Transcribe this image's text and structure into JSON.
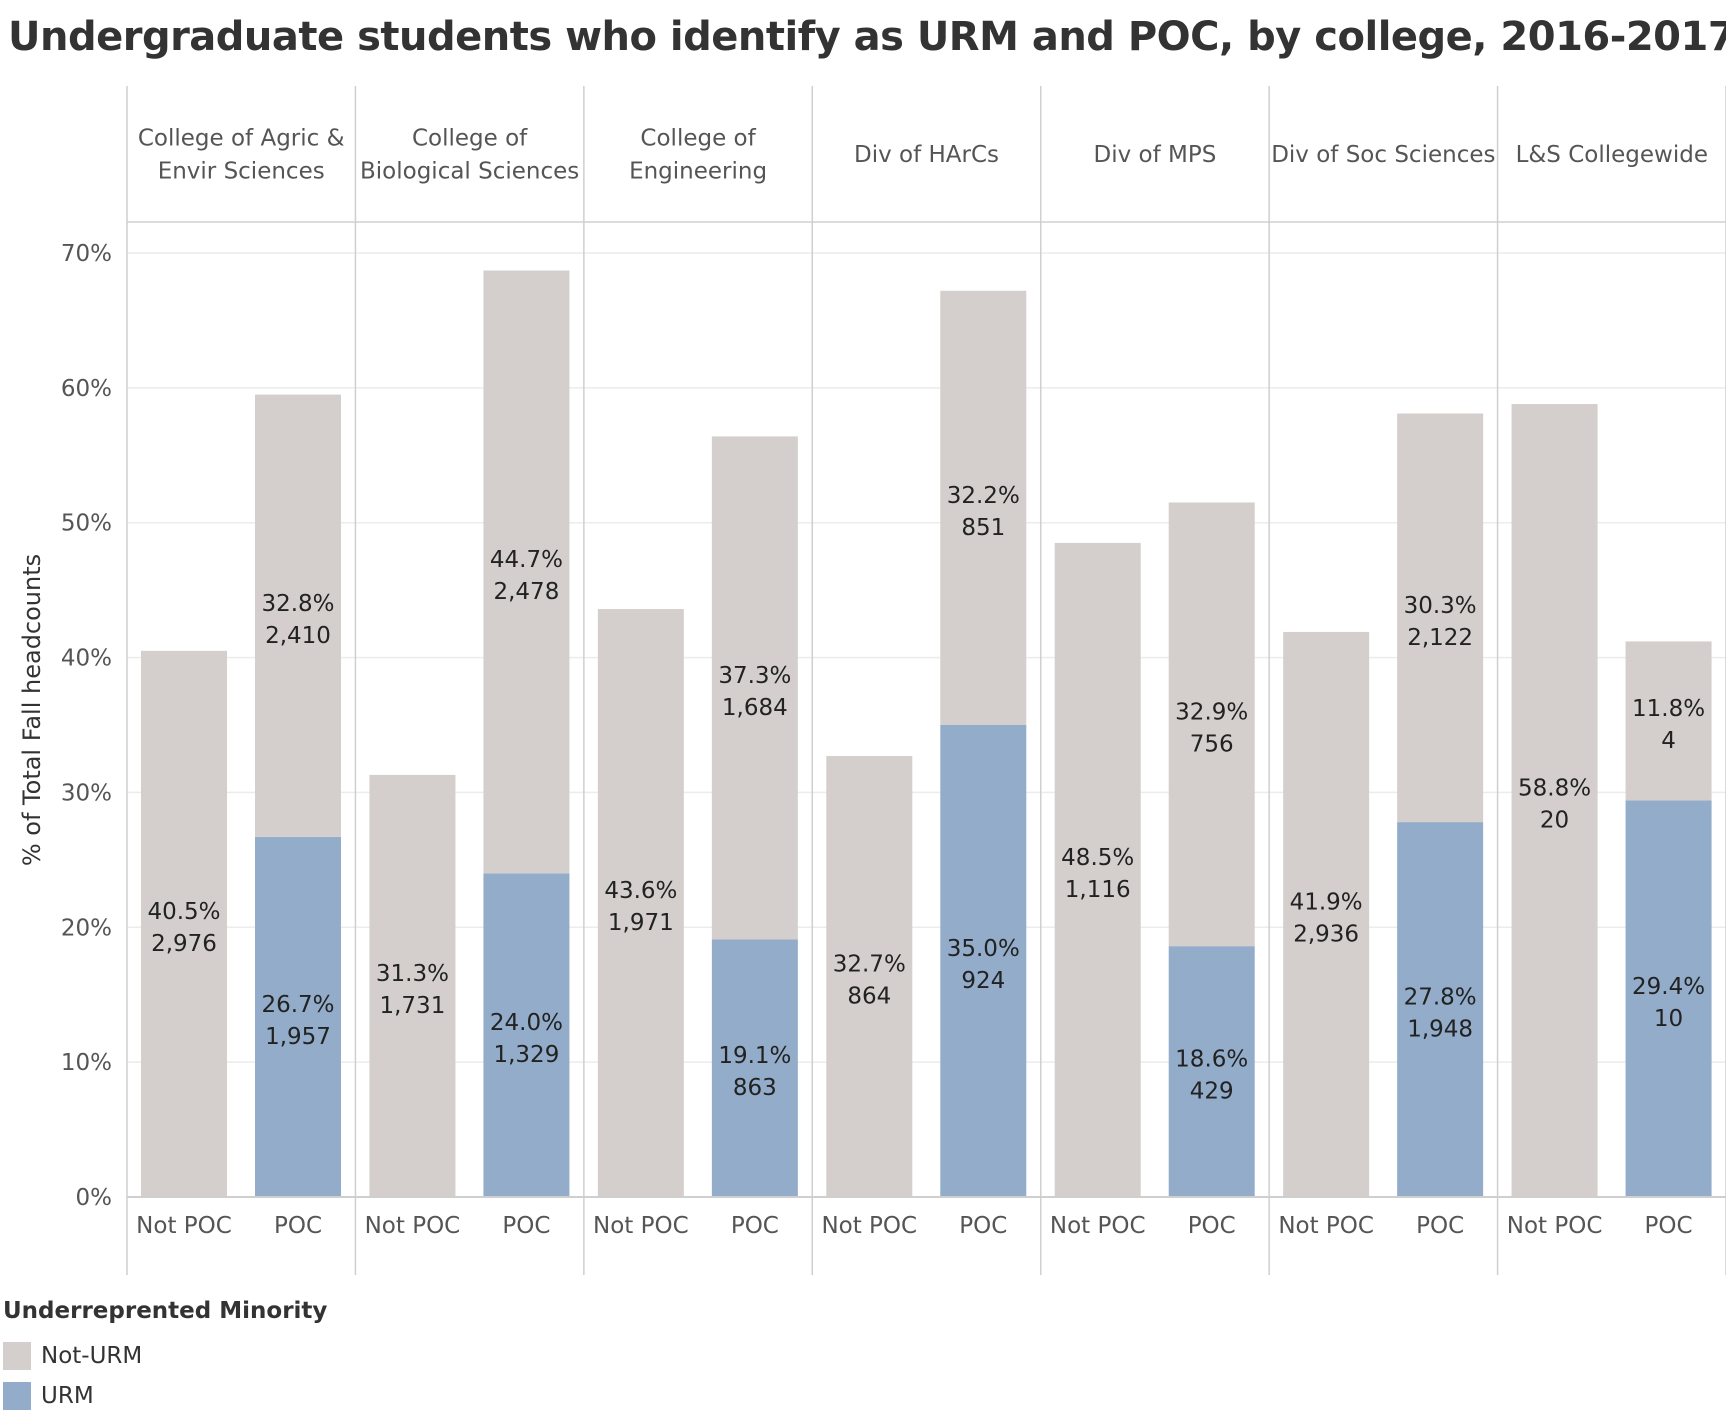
{
  "chart_data": {
    "type": "bar",
    "stacked": true,
    "title": "Undergraduate students who identify as URM and POC, by college, 2016-2017",
    "ylabel": "% of Total Fall headcounts",
    "ylim": [
      0,
      70
    ],
    "yticks": [
      "0%",
      "10%",
      "20%",
      "30%",
      "40%",
      "50%",
      "60%",
      "70%"
    ],
    "ytick_values": [
      0,
      10,
      20,
      30,
      40,
      50,
      60,
      70
    ],
    "grid": true,
    "legend": {
      "title": "Underreprented Minority",
      "position": "bottom-left",
      "items": [
        {
          "name": "Not-URM",
          "color": "#d4cfcc"
        },
        {
          "name": "URM",
          "color": "#92acca"
        }
      ]
    },
    "panels": [
      {
        "college": [
          "College of Agric &",
          "Envir Sciences"
        ],
        "bars": [
          {
            "category": "Not POC",
            "not_urm": {
              "pct": 40.5,
              "label_pct": "40.5%",
              "label_count": "2,976"
            },
            "urm": null
          },
          {
            "category": "POC",
            "not_urm": {
              "pct": 32.8,
              "label_pct": "32.8%",
              "label_count": "2,410"
            },
            "urm": {
              "pct": 26.7,
              "label_pct": "26.7%",
              "label_count": "1,957"
            }
          }
        ]
      },
      {
        "college": [
          "College of",
          "Biological Sciences"
        ],
        "bars": [
          {
            "category": "Not POC",
            "not_urm": {
              "pct": 31.3,
              "label_pct": "31.3%",
              "label_count": "1,731"
            },
            "urm": null
          },
          {
            "category": "POC",
            "not_urm": {
              "pct": 44.7,
              "label_pct": "44.7%",
              "label_count": "2,478"
            },
            "urm": {
              "pct": 24.0,
              "label_pct": "24.0%",
              "label_count": "1,329"
            }
          }
        ]
      },
      {
        "college": [
          "College of",
          "Engineering"
        ],
        "bars": [
          {
            "category": "Not POC",
            "not_urm": {
              "pct": 43.6,
              "label_pct": "43.6%",
              "label_count": "1,971"
            },
            "urm": null
          },
          {
            "category": "POC",
            "not_urm": {
              "pct": 37.3,
              "label_pct": "37.3%",
              "label_count": "1,684"
            },
            "urm": {
              "pct": 19.1,
              "label_pct": "19.1%",
              "label_count": "863"
            }
          }
        ]
      },
      {
        "college": [
          "Div of HArCs"
        ],
        "bars": [
          {
            "category": "Not POC",
            "not_urm": {
              "pct": 32.7,
              "label_pct": "32.7%",
              "label_count": "864"
            },
            "urm": null
          },
          {
            "category": "POC",
            "not_urm": {
              "pct": 32.2,
              "label_pct": "32.2%",
              "label_count": "851"
            },
            "urm": {
              "pct": 35.0,
              "label_pct": "35.0%",
              "label_count": "924"
            }
          }
        ]
      },
      {
        "college": [
          "Div of MPS"
        ],
        "bars": [
          {
            "category": "Not POC",
            "not_urm": {
              "pct": 48.5,
              "label_pct": "48.5%",
              "label_count": "1,116"
            },
            "urm": null
          },
          {
            "category": "POC",
            "not_urm": {
              "pct": 32.9,
              "label_pct": "32.9%",
              "label_count": "756"
            },
            "urm": {
              "pct": 18.6,
              "label_pct": "18.6%",
              "label_count": "429"
            }
          }
        ]
      },
      {
        "college": [
          "Div of Soc Sciences"
        ],
        "bars": [
          {
            "category": "Not POC",
            "not_urm": {
              "pct": 41.9,
              "label_pct": "41.9%",
              "label_count": "2,936"
            },
            "urm": null
          },
          {
            "category": "POC",
            "not_urm": {
              "pct": 30.3,
              "label_pct": "30.3%",
              "label_count": "2,122"
            },
            "urm": {
              "pct": 27.8,
              "label_pct": "27.8%",
              "label_count": "1,948"
            }
          }
        ]
      },
      {
        "college": [
          "L&S Collegewide"
        ],
        "bars": [
          {
            "category": "Not POC",
            "not_urm": {
              "pct": 58.8,
              "label_pct": "58.8%",
              "label_count": "20"
            },
            "urm": null
          },
          {
            "category": "POC",
            "not_urm": {
              "pct": 11.8,
              "label_pct": "11.8%",
              "label_count": "4"
            },
            "urm": {
              "pct": 29.4,
              "label_pct": "29.4%",
              "label_count": "10"
            }
          }
        ]
      }
    ]
  }
}
